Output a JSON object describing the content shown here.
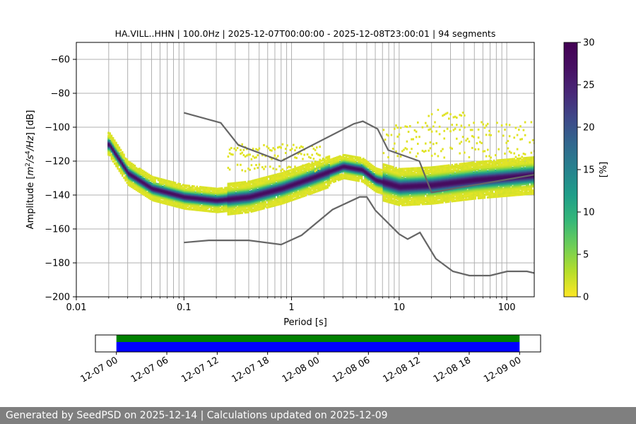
{
  "chart_data": {
    "type": "heatmap",
    "title": "HA.VILL..HHN | 100.0Hz | 2025-12-07T00:00:00 - 2025-12-08T23:00:01 | 94 segments",
    "xlabel": "Period [s]",
    "ylabel_parts": [
      "Amplitude [",
      "m",
      "2",
      "/",
      "s",
      "4",
      "/",
      "Hz",
      "] [dB]"
    ],
    "x_scale": "log",
    "xlim": [
      0.01,
      180
    ],
    "ylim": [
      -200,
      -50
    ],
    "x_ticks": [
      {
        "value": 0.01,
        "label": "0.01"
      },
      {
        "value": 0.1,
        "label": "0.1"
      },
      {
        "value": 1,
        "label": "1"
      },
      {
        "value": 10,
        "label": "10"
      },
      {
        "value": 100,
        "label": "100"
      }
    ],
    "y_ticks": [
      {
        "value": -60,
        "label": "−60"
      },
      {
        "value": -80,
        "label": "−80"
      },
      {
        "value": -100,
        "label": "−100"
      },
      {
        "value": -120,
        "label": "−120"
      },
      {
        "value": -140,
        "label": "−140"
      },
      {
        "value": -160,
        "label": "−160"
      },
      {
        "value": -180,
        "label": "−180"
      },
      {
        "value": -200,
        "label": "−200"
      }
    ],
    "grid": true,
    "colormap": "viridis_r",
    "colorbar": {
      "label": "[%]",
      "range": [
        0,
        30
      ],
      "ticks": [
        {
          "value": 0,
          "label": "0"
        },
        {
          "value": 5,
          "label": "5"
        },
        {
          "value": 10,
          "label": "10"
        },
        {
          "value": 15,
          "label": "15"
        },
        {
          "value": 20,
          "label": "20"
        },
        {
          "value": 25,
          "label": "25"
        },
        {
          "value": 30,
          "label": "30"
        }
      ]
    },
    "mode_curve": [
      {
        "x": 0.02,
        "y": -110
      },
      {
        "x": 0.03,
        "y": -127
      },
      {
        "x": 0.05,
        "y": -136
      },
      {
        "x": 0.1,
        "y": -141
      },
      {
        "x": 0.2,
        "y": -143
      },
      {
        "x": 0.4,
        "y": -141
      },
      {
        "x": 0.8,
        "y": -136
      },
      {
        "x": 1.5,
        "y": -130
      },
      {
        "x": 3,
        "y": -123
      },
      {
        "x": 4.5,
        "y": -125
      },
      {
        "x": 6,
        "y": -131
      },
      {
        "x": 10,
        "y": -135
      },
      {
        "x": 20,
        "y": -134
      },
      {
        "x": 50,
        "y": -131
      },
      {
        "x": 180,
        "y": -128
      }
    ],
    "upper_noise_model": [
      {
        "x": 0.1,
        "y": -91.5
      },
      {
        "x": 0.22,
        "y": -97.4
      },
      {
        "x": 0.32,
        "y": -110.5
      },
      {
        "x": 0.8,
        "y": -120
      },
      {
        "x": 3.8,
        "y": -98
      },
      {
        "x": 4.6,
        "y": -96.5
      },
      {
        "x": 6.3,
        "y": -101
      },
      {
        "x": 7.9,
        "y": -113.5
      },
      {
        "x": 15.4,
        "y": -120
      },
      {
        "x": 20,
        "y": -138.5
      },
      {
        "x": 180,
        "y": -128
      }
    ],
    "lower_noise_model": [
      {
        "x": 0.1,
        "y": -168
      },
      {
        "x": 0.17,
        "y": -166.7
      },
      {
        "x": 0.4,
        "y": -166.7
      },
      {
        "x": 0.8,
        "y": -169.2
      },
      {
        "x": 1.24,
        "y": -163.7
      },
      {
        "x": 2.4,
        "y": -148.6
      },
      {
        "x": 4.3,
        "y": -141.1
      },
      {
        "x": 5.0,
        "y": -141.1
      },
      {
        "x": 6.0,
        "y": -149
      },
      {
        "x": 10,
        "y": -163
      },
      {
        "x": 12,
        "y": -166
      },
      {
        "x": 15.6,
        "y": -162.1
      },
      {
        "x": 21.9,
        "y": -177.5
      },
      {
        "x": 31.6,
        "y": -185
      },
      {
        "x": 45,
        "y": -187.5
      },
      {
        "x": 70,
        "y": -187.5
      },
      {
        "x": 101,
        "y": -185
      },
      {
        "x": 154,
        "y": -185
      },
      {
        "x": 180,
        "y": -186
      }
    ],
    "availability": {
      "tick_labels": [
        "12-07 00",
        "12-07 06",
        "12-07 12",
        "12-07 18",
        "12-08 00",
        "12-08 06",
        "12-08 12",
        "12-08 18",
        "12-09 00"
      ],
      "range_hours": [
        -2.5,
        50.5
      ],
      "data_hours": [
        0,
        48
      ],
      "colors": {
        "top": "#008000",
        "bottom": "#0000ff"
      }
    }
  },
  "footer": {
    "text": "Generated by SeedPSD on 2025-12-14 | Calculations updated on 2025-12-09"
  }
}
